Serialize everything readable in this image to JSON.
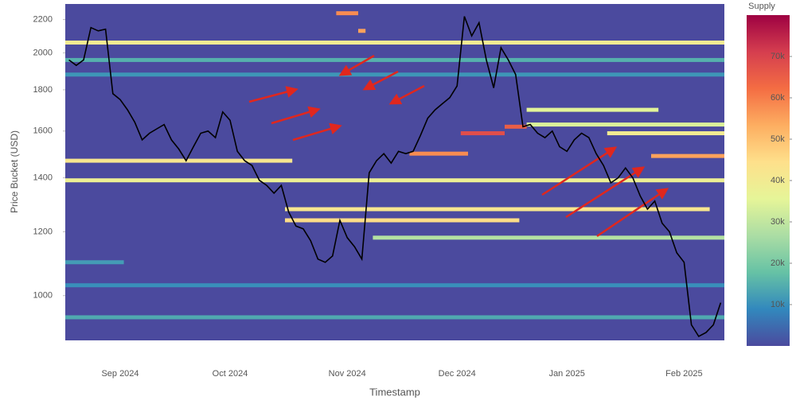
{
  "chart_data": {
    "type": "heatmap",
    "x_label": "Timestamp",
    "y_label": "Price Bucket (USD)",
    "colorbar_title": "Supply",
    "categories": [
      null,
      null,
      null,
      null,
      null,
      null,
      null,
      "Sep 2024",
      null,
      null,
      null,
      null,
      null,
      null,
      null,
      null,
      null,
      null,
      null,
      null,
      null,
      null,
      "Oct 2024",
      null,
      null,
      null,
      null,
      null,
      null,
      null,
      null,
      null,
      null,
      null,
      null,
      null,
      null,
      null,
      "Nov 2024",
      null,
      null,
      null,
      null,
      null,
      null,
      null,
      null,
      null,
      null,
      null,
      null,
      null,
      null,
      "Dec 2024",
      null,
      null,
      null,
      null,
      null,
      null,
      null,
      null,
      null,
      null,
      null,
      null,
      null,
      null,
      "Jan 2025",
      null,
      null,
      null,
      null,
      null,
      null,
      null,
      null,
      null,
      null,
      null,
      null,
      null,
      null,
      null,
      "Feb 2025",
      null,
      null,
      null,
      null,
      null
    ],
    "ylim": [
      880,
      2300
    ],
    "yticks": [
      1000,
      1200,
      1400,
      1600,
      1800,
      2000,
      2200
    ],
    "log_y": true,
    "zlim": [
      0,
      80000
    ],
    "zticks": [
      {
        "value": 10000,
        "label": "10k"
      },
      {
        "value": 20000,
        "label": "20k"
      },
      {
        "value": 30000,
        "label": "30k"
      },
      {
        "value": 40000,
        "label": "40k"
      },
      {
        "value": 50000,
        "label": "50k"
      },
      {
        "value": 60000,
        "label": "60k"
      },
      {
        "value": 70000,
        "label": "70k"
      }
    ],
    "colorscale": [
      "#4b4a9e",
      "#3288bd",
      "#66c2a5",
      "#abdda4",
      "#e6f598",
      "#fee08b",
      "#fdae61",
      "#f46d43",
      "#d53e4f",
      "#9e0142"
    ],
    "cells": [
      {
        "price": 2060,
        "start": 0,
        "end": 89,
        "value": 40000
      },
      {
        "price": 1960,
        "start": 0,
        "end": 89,
        "value": 15000
      },
      {
        "price": 1880,
        "start": 0,
        "end": 89,
        "value": 11000
      },
      {
        "price": 2240,
        "start": 37,
        "end": 39,
        "value": 58000
      },
      {
        "price": 2130,
        "start": 40,
        "end": 40,
        "value": 55000
      },
      {
        "price": 1470,
        "start": 0,
        "end": 30,
        "value": 42000
      },
      {
        "price": 1390,
        "start": 0,
        "end": 89,
        "value": 38000
      },
      {
        "price": 1500,
        "start": 47,
        "end": 54,
        "value": 58000
      },
      {
        "price": 1590,
        "start": 54,
        "end": 59,
        "value": 68000
      },
      {
        "price": 1620,
        "start": 60,
        "end": 62,
        "value": 65000
      },
      {
        "price": 1700,
        "start": 63,
        "end": 80,
        "value": 35000
      },
      {
        "price": 1630,
        "start": 63,
        "end": 89,
        "value": 34000
      },
      {
        "price": 1590,
        "start": 74,
        "end": 89,
        "value": 40000
      },
      {
        "price": 1490,
        "start": 80,
        "end": 89,
        "value": 55000
      },
      {
        "price": 1280,
        "start": 30,
        "end": 87,
        "value": 42000
      },
      {
        "price": 1240,
        "start": 30,
        "end": 61,
        "value": 45000
      },
      {
        "price": 1180,
        "start": 42,
        "end": 89,
        "value": 28000
      },
      {
        "price": 1100,
        "start": 0,
        "end": 7,
        "value": 12000
      },
      {
        "price": 1030,
        "start": 0,
        "end": 89,
        "value": 10000
      },
      {
        "price": 940,
        "start": 0,
        "end": 89,
        "value": 14000
      }
    ],
    "line": {
      "color": "#000000",
      "values": [
        1960,
        1930,
        1960,
        2150,
        2130,
        2140,
        1780,
        1750,
        1700,
        1640,
        1560,
        1590,
        1610,
        1630,
        1560,
        1520,
        1470,
        1530,
        1590,
        1600,
        1570,
        1690,
        1650,
        1510,
        1470,
        1450,
        1390,
        1370,
        1340,
        1370,
        1270,
        1220,
        1210,
        1170,
        1110,
        1100,
        1120,
        1240,
        1180,
        1150,
        1110,
        1420,
        1470,
        1500,
        1460,
        1510,
        1500,
        1510,
        1580,
        1660,
        1700,
        1730,
        1760,
        1820,
        2220,
        2100,
        2180,
        1960,
        1810,
        2030,
        1960,
        1880,
        1620,
        1630,
        1590,
        1570,
        1600,
        1530,
        1510,
        1560,
        1590,
        1570,
        1500,
        1450,
        1380,
        1400,
        1440,
        1400,
        1330,
        1280,
        1310,
        1230,
        1200,
        1130,
        1100,
        920,
        890,
        900,
        920,
        980
      ]
    }
  }
}
